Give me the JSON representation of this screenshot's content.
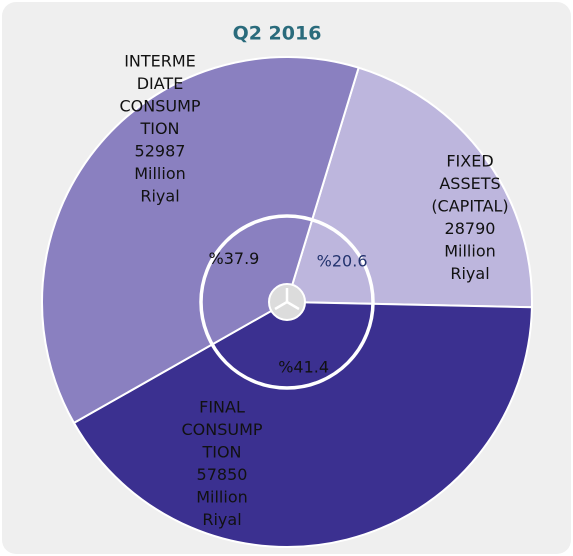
{
  "chart_data": {
    "type": "pie",
    "title": "Q2 2016",
    "categories": [
      [
        "FIXED",
        "ASSETS",
        "(CAPITAL)"
      ],
      [
        "FINAL",
        "CONSUMP",
        "TION"
      ],
      [
        "INTERME",
        "DIATE",
        "CONSUMP",
        "TION"
      ]
    ],
    "values": [
      20.6,
      41.4,
      37.9
    ],
    "value_labels": [
      "%20.6",
      "%41.4",
      "%37.9"
    ],
    "amounts": [
      28790,
      57850,
      52987
    ],
    "amount_unit": [
      "Million",
      "Riyal"
    ],
    "colors": [
      "#bdb6dd",
      "#3b3090",
      "#8a80c0"
    ]
  }
}
